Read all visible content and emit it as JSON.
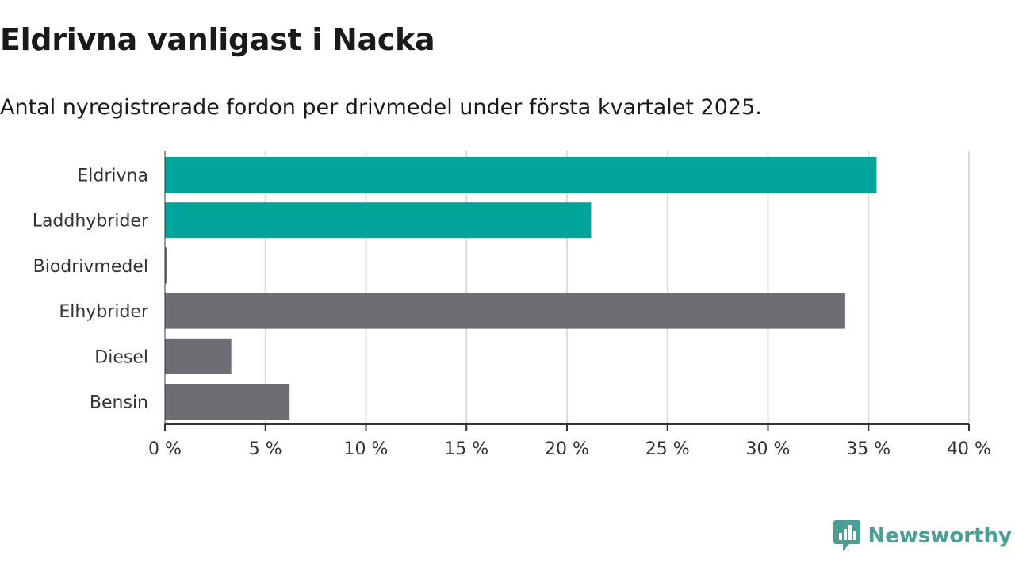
{
  "title": "Eldrivna vanligast i Nacka",
  "subtitle": "Antal nyregistrerade fordon per drivmedel under första kvartalet 2025.",
  "brand": {
    "name": "Newsworthy",
    "icon": "newsworthy-logo-icon"
  },
  "colors": {
    "highlight": "#00a499",
    "default": "#6e6d73",
    "grid": "#dddddd",
    "axis": "#333333",
    "brand": "#4a9e96"
  },
  "chart_data": {
    "type": "bar",
    "orientation": "horizontal",
    "categories": [
      "Eldrivna",
      "Laddhybrider",
      "Biodrivmedel",
      "Elhybrider",
      "Diesel",
      "Bensin"
    ],
    "values": [
      35.4,
      21.2,
      0.1,
      33.8,
      3.3,
      6.2
    ],
    "highlighted": [
      true,
      true,
      false,
      false,
      false,
      false
    ],
    "xlim": [
      0,
      40
    ],
    "ticks": [
      0,
      5,
      10,
      15,
      20,
      25,
      30,
      35,
      40
    ],
    "tick_labels": [
      "0 %",
      "5 %",
      "10 %",
      "15 %",
      "20 %",
      "25 %",
      "30 %",
      "35 %",
      "40 %"
    ],
    "unit": "%",
    "grid": true
  }
}
